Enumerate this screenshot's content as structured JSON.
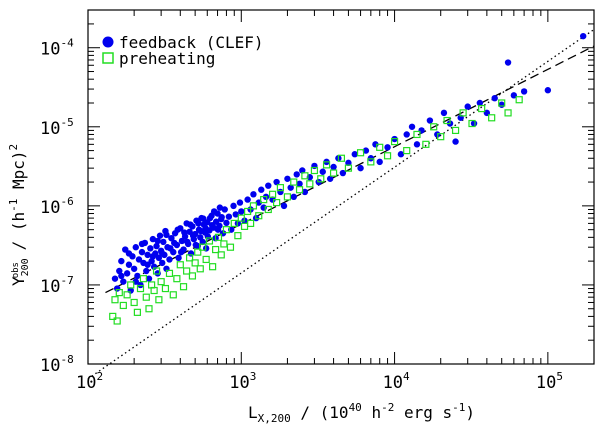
{
  "chart_data": {
    "type": "scatter",
    "x_scale": "log",
    "y_scale": "log",
    "xlim": [
      100,
      200000
    ],
    "ylim": [
      1e-08,
      0.0003
    ],
    "xlabel": {
      "pre": "L",
      "sub": "X,200",
      "mid": " / (10",
      "sup1": "40",
      "mid2": " h",
      "sup2": "-2",
      "mid3": " erg s",
      "sup3": "-1",
      "post": ")"
    },
    "ylabel": {
      "pre": "Y",
      "sub": "200",
      "supsub": "obs",
      "mid": " /  (h",
      "sup1": "-1",
      "mid2": " Mpc)",
      "sup2": "2"
    },
    "x_ticks": [
      {
        "value": 100,
        "base": "10",
        "exp": "2"
      },
      {
        "value": 1000,
        "base": "10",
        "exp": "3"
      },
      {
        "value": 10000,
        "base": "10",
        "exp": "4"
      },
      {
        "value": 100000,
        "base": "10",
        "exp": "5"
      }
    ],
    "y_ticks": [
      {
        "value": 1e-08,
        "base": "10",
        "exp": "-8"
      },
      {
        "value": 1e-07,
        "base": "10",
        "exp": "-7"
      },
      {
        "value": 1e-06,
        "base": "10",
        "exp": "-6"
      },
      {
        "value": 1e-05,
        "base": "10",
        "exp": "-5"
      },
      {
        "value": 0.0001,
        "base": "10",
        "exp": "-4"
      }
    ],
    "legend_position": "top-left",
    "series": [
      {
        "name": "feedback (CLEF)",
        "marker": "filled-circle",
        "color": "#0000ee",
        "points": [
          [
            150,
            1.2e-07
          ],
          [
            155,
            9e-08
          ],
          [
            160,
            1.5e-07
          ],
          [
            165,
            2e-07
          ],
          [
            170,
            1.1e-07
          ],
          [
            175,
            2.8e-07
          ],
          [
            180,
            1.4e-07
          ],
          [
            185,
            1.8e-07
          ],
          [
            190,
            8.5e-08
          ],
          [
            195,
            2.3e-07
          ],
          [
            200,
            1.6e-07
          ],
          [
            205,
            3e-07
          ],
          [
            210,
            1.3e-07
          ],
          [
            215,
            2.1e-07
          ],
          [
            220,
            1e-07
          ],
          [
            225,
            2.6e-07
          ],
          [
            230,
            1.9e-07
          ],
          [
            235,
            3.4e-07
          ],
          [
            240,
            1.5e-07
          ],
          [
            245,
            2.4e-07
          ],
          [
            250,
            1.2e-07
          ],
          [
            255,
            2.9e-07
          ],
          [
            260,
            2e-07
          ],
          [
            265,
            3.8e-07
          ],
          [
            270,
            1.7e-07
          ],
          [
            275,
            2.5e-07
          ],
          [
            280,
            3.1e-07
          ],
          [
            285,
            1.4e-07
          ],
          [
            290,
            2.2e-07
          ],
          [
            295,
            4.2e-07
          ],
          [
            300,
            2.7e-07
          ],
          [
            305,
            1.9e-07
          ],
          [
            310,
            3.5e-07
          ],
          [
            315,
            2.4e-07
          ],
          [
            320,
            4.8e-07
          ],
          [
            325,
            1.6e-07
          ],
          [
            330,
            3e-07
          ],
          [
            340,
            2.1e-07
          ],
          [
            350,
            3.9e-07
          ],
          [
            360,
            2.6e-07
          ],
          [
            370,
            4.5e-07
          ],
          [
            380,
            3.2e-07
          ],
          [
            390,
            2.2e-07
          ],
          [
            400,
            5.2e-07
          ],
          [
            410,
            3.6e-07
          ],
          [
            420,
            2.8e-07
          ],
          [
            430,
            4.1e-07
          ],
          [
            440,
            6e-07
          ],
          [
            450,
            3.3e-07
          ],
          [
            460,
            4.7e-07
          ],
          [
            470,
            2.5e-07
          ],
          [
            480,
            5.5e-07
          ],
          [
            490,
            3.8e-07
          ],
          [
            500,
            4.4e-07
          ],
          [
            510,
            6.5e-07
          ],
          [
            520,
            3.1e-07
          ],
          [
            530,
            5e-07
          ],
          [
            540,
            4e-07
          ],
          [
            550,
            7e-07
          ],
          [
            560,
            3.5e-07
          ],
          [
            570,
            5.8e-07
          ],
          [
            580,
            4.6e-07
          ],
          [
            590,
            2.9e-07
          ],
          [
            600,
            6.2e-07
          ],
          [
            620,
            4.9e-07
          ],
          [
            640,
            7.5e-07
          ],
          [
            660,
            5.3e-07
          ],
          [
            680,
            3.9e-07
          ],
          [
            700,
            8e-07
          ],
          [
            720,
            5.6e-07
          ],
          [
            740,
            6.8e-07
          ],
          [
            760,
            4.5e-07
          ],
          [
            780,
            9e-07
          ],
          [
            800,
            6.1e-07
          ],
          [
            830,
            7.3e-07
          ],
          [
            860,
            5e-07
          ],
          [
            890,
            1e-06
          ],
          [
            920,
            7.8e-07
          ],
          [
            950,
            6e-07
          ],
          [
            980,
            1.1e-06
          ],
          [
            1000,
            8.5e-07
          ],
          [
            1050,
            6.5e-07
          ],
          [
            1100,
            1.2e-06
          ],
          [
            1150,
            9e-07
          ],
          [
            1200,
            1.4e-06
          ],
          [
            1250,
            7e-07
          ],
          [
            1300,
            1.1e-06
          ],
          [
            1350,
            1.6e-06
          ],
          [
            1400,
            9.5e-07
          ],
          [
            1450,
            1.3e-06
          ],
          [
            1500,
            1.8e-06
          ],
          [
            1600,
            1.2e-06
          ],
          [
            1700,
            2e-06
          ],
          [
            1800,
            1.5e-06
          ],
          [
            1900,
            1e-06
          ],
          [
            2000,
            2.2e-06
          ],
          [
            2100,
            1.7e-06
          ],
          [
            2200,
            1.3e-06
          ],
          [
            2300,
            2.5e-06
          ],
          [
            2400,
            1.9e-06
          ],
          [
            2500,
            2.8e-06
          ],
          [
            2600,
            1.5e-06
          ],
          [
            2800,
            2.3e-06
          ],
          [
            3000,
            3.2e-06
          ],
          [
            3200,
            2e-06
          ],
          [
            3400,
            2.7e-06
          ],
          [
            3600,
            3.6e-06
          ],
          [
            3800,
            2.2e-06
          ],
          [
            4000,
            3.1e-06
          ],
          [
            4300,
            4e-06
          ],
          [
            4600,
            2.6e-06
          ],
          [
            5000,
            3.5e-06
          ],
          [
            5500,
            4.5e-06
          ],
          [
            6000,
            3e-06
          ],
          [
            6500,
            5e-06
          ],
          [
            7000,
            4e-06
          ],
          [
            7500,
            6e-06
          ],
          [
            8000,
            3.6e-06
          ],
          [
            9000,
            5.5e-06
          ],
          [
            10000,
            7e-06
          ],
          [
            11000,
            4.5e-06
          ],
          [
            12000,
            8e-06
          ],
          [
            13000,
            1e-05
          ],
          [
            14000,
            6e-06
          ],
          [
            15000,
            9e-06
          ],
          [
            17000,
            1.2e-05
          ],
          [
            19000,
            8e-06
          ],
          [
            21000,
            1.5e-05
          ],
          [
            23000,
            1.1e-05
          ],
          [
            25000,
            6.5e-06
          ],
          [
            27000,
            1.3e-05
          ],
          [
            30000,
            1.8e-05
          ],
          [
            33000,
            1.1e-05
          ],
          [
            36000,
            2e-05
          ],
          [
            40000,
            1.5e-05
          ],
          [
            45000,
            2.3e-05
          ],
          [
            50000,
            1.9e-05
          ],
          [
            55000,
            6.5e-05
          ],
          [
            60000,
            2.5e-05
          ],
          [
            70000,
            2.8e-05
          ],
          [
            100000,
            2.9e-05
          ],
          [
            170000,
            0.00014
          ],
          [
            165,
            1.3e-07
          ],
          [
            185,
            2.5e-07
          ],
          [
            205,
            1.1e-07
          ],
          [
            225,
            3.3e-07
          ],
          [
            245,
            1.8e-07
          ],
          [
            265,
            2.3e-07
          ],
          [
            285,
            3.6e-07
          ],
          [
            305,
            2.5e-07
          ],
          [
            325,
            4.3e-07
          ],
          [
            345,
            2.9e-07
          ],
          [
            365,
            3.4e-07
          ],
          [
            385,
            5e-07
          ],
          [
            405,
            2.6e-07
          ],
          [
            425,
            4.6e-07
          ],
          [
            445,
            3.5e-07
          ],
          [
            465,
            5.8e-07
          ],
          [
            485,
            4.2e-07
          ],
          [
            505,
            3.2e-07
          ],
          [
            525,
            6e-07
          ],
          [
            545,
            4.8e-07
          ],
          [
            565,
            6.9e-07
          ],
          [
            585,
            5.2e-07
          ],
          [
            605,
            4.1e-07
          ],
          [
            625,
            7e-07
          ],
          [
            645,
            5.7e-07
          ],
          [
            665,
            8.5e-07
          ],
          [
            685,
            6.3e-07
          ],
          [
            705,
            5e-07
          ],
          [
            725,
            9.5e-07
          ],
          [
            745,
            7.2e-07
          ]
        ]
      },
      {
        "name": "preheating",
        "marker": "open-square",
        "color": "#22dd22",
        "points": [
          [
            145,
            4e-08
          ],
          [
            150,
            6.5e-08
          ],
          [
            155,
            3.5e-08
          ],
          [
            160,
            8e-08
          ],
          [
            170,
            5.5e-08
          ],
          [
            180,
            7.5e-08
          ],
          [
            190,
            1e-07
          ],
          [
            200,
            6e-08
          ],
          [
            210,
            4.5e-08
          ],
          [
            220,
            9e-08
          ],
          [
            230,
            1.2e-07
          ],
          [
            240,
            7e-08
          ],
          [
            250,
            5e-08
          ],
          [
            260,
            1e-07
          ],
          [
            270,
            8.5e-08
          ],
          [
            280,
            1.5e-07
          ],
          [
            290,
            6.5e-08
          ],
          [
            300,
            1.1e-07
          ],
          [
            320,
            9e-08
          ],
          [
            340,
            1.4e-07
          ],
          [
            360,
            7.5e-08
          ],
          [
            380,
            1.2e-07
          ],
          [
            400,
            1.8e-07
          ],
          [
            420,
            9.5e-08
          ],
          [
            440,
            1.5e-07
          ],
          [
            460,
            2.2e-07
          ],
          [
            480,
            1.3e-07
          ],
          [
            500,
            1.9e-07
          ],
          [
            520,
            2.6e-07
          ],
          [
            540,
            1.6e-07
          ],
          [
            560,
            3e-07
          ],
          [
            590,
            2.1e-07
          ],
          [
            620,
            3.6e-07
          ],
          [
            650,
            1.7e-07
          ],
          [
            680,
            2.8e-07
          ],
          [
            710,
            4e-07
          ],
          [
            740,
            2.4e-07
          ],
          [
            770,
            3.3e-07
          ],
          [
            800,
            5e-07
          ],
          [
            850,
            3e-07
          ],
          [
            900,
            6e-07
          ],
          [
            950,
            4.2e-07
          ],
          [
            1000,
            7e-07
          ],
          [
            1050,
            5.5e-07
          ],
          [
            1100,
            8.5e-07
          ],
          [
            1150,
            6e-07
          ],
          [
            1200,
            1e-06
          ],
          [
            1300,
            7.5e-07
          ],
          [
            1400,
            1.2e-06
          ],
          [
            1500,
            9e-07
          ],
          [
            1600,
            1.4e-06
          ],
          [
            1700,
            1.1e-06
          ],
          [
            1800,
            1.7e-06
          ],
          [
            2000,
            1.3e-06
          ],
          [
            2200,
            2e-06
          ],
          [
            2400,
            1.6e-06
          ],
          [
            2600,
            2.4e-06
          ],
          [
            2800,
            1.9e-06
          ],
          [
            3000,
            2.8e-06
          ],
          [
            3300,
            2.2e-06
          ],
          [
            3600,
            3.3e-06
          ],
          [
            4000,
            2.6e-06
          ],
          [
            4500,
            4e-06
          ],
          [
            5000,
            3e-06
          ],
          [
            6000,
            4.7e-06
          ],
          [
            7000,
            3.6e-06
          ],
          [
            8000,
            5.5e-06
          ],
          [
            9000,
            4.3e-06
          ],
          [
            10000,
            6.5e-06
          ],
          [
            12000,
            5e-06
          ],
          [
            14000,
            8e-06
          ],
          [
            16000,
            6e-06
          ],
          [
            18000,
            1e-05
          ],
          [
            20000,
            7.5e-06
          ],
          [
            22000,
            1.2e-05
          ],
          [
            25000,
            9e-06
          ],
          [
            28000,
            1.5e-05
          ],
          [
            32000,
            1.1e-05
          ],
          [
            37000,
            1.7e-05
          ],
          [
            43000,
            1.3e-05
          ],
          [
            50000,
            2e-05
          ],
          [
            55000,
            1.5e-05
          ],
          [
            65000,
            2.2e-05
          ]
        ]
      }
    ],
    "reference_lines": [
      {
        "style": "dotted",
        "points": [
          [
            100,
            6.5e-09
          ],
          [
            200000,
            0.00017
          ]
        ]
      },
      {
        "style": "dashed",
        "points": [
          [
            130,
            8e-08
          ],
          [
            200000,
            0.000105
          ]
        ]
      }
    ]
  }
}
